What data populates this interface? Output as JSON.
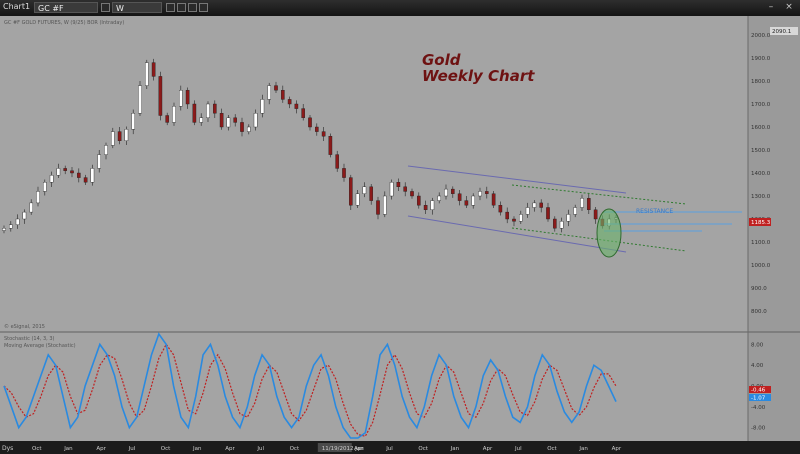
{
  "window": {
    "tab_label": "Chart1",
    "symbol": "GC #F",
    "interval": "W"
  },
  "chart_top": {
    "header_text": "GC #F GOLD FUTURES, W (9/25) BOR (Intraday)",
    "title_line1": "Gold",
    "title_line2": "Weekly Chart",
    "annotation": "RESISTANCE",
    "watermark": "© eSignal, 2015",
    "price_labels": [
      "2000.0",
      "1900.0",
      "1800.0",
      "1700.0",
      "1600.0",
      "1500.0",
      "1400.0",
      "1300.0",
      "1200.0",
      "1100.0",
      "1000.0",
      "900.0",
      "800.0"
    ],
    "top_price_badge": "2090.1",
    "last_price_badge": "1185.3",
    "colors": {
      "background": "#a4a4a4",
      "title": "#6e1212",
      "up_candle": "#ffffff",
      "down_candle": "#8b1a1a",
      "channel": "#6a6ab0",
      "resistance": "#5aa0e0",
      "trend_green": "#2f7a2f",
      "ellipse": "#6ab46a"
    }
  },
  "chart_bottom": {
    "header_line1": "Stochastic (14, 3, 3)",
    "header_line2": "Moving Average (Stochastic)",
    "levels": [
      "8.00",
      "4.00",
      "0.00",
      "-4.00",
      "-8.00"
    ],
    "badge_red": "-0.46",
    "badge_blue": "-1.07",
    "colors": {
      "fast": "#2a8ae0",
      "slow": "#c02020"
    }
  },
  "time_axis": {
    "interval_label": "Dys",
    "labels": [
      "Oct",
      "Jan",
      "Apr",
      "Jul",
      "Oct",
      "Jan",
      "Apr",
      "Jul",
      "Oct",
      "11/19/2012 Jan",
      "Apr",
      "Jul",
      "Oct",
      "Jan",
      "Apr",
      "Jul",
      "Oct",
      "Jan",
      "Apr"
    ]
  },
  "chart_data": {
    "type": "candlestick",
    "title": "Gold Weekly Chart",
    "ylim": [
      800,
      2050
    ],
    "close_series": [
      1160,
      1175,
      1200,
      1230,
      1270,
      1320,
      1360,
      1390,
      1420,
      1410,
      1400,
      1380,
      1360,
      1420,
      1480,
      1520,
      1580,
      1540,
      1590,
      1660,
      1780,
      1880,
      1820,
      1650,
      1620,
      1690,
      1760,
      1700,
      1620,
      1640,
      1700,
      1660,
      1600,
      1640,
      1620,
      1580,
      1600,
      1660,
      1720,
      1780,
      1760,
      1720,
      1700,
      1680,
      1640,
      1600,
      1580,
      1560,
      1480,
      1420,
      1380,
      1260,
      1310,
      1340,
      1280,
      1220,
      1300,
      1360,
      1340,
      1320,
      1300,
      1260,
      1240,
      1280,
      1300,
      1330,
      1310,
      1280,
      1260,
      1300,
      1320,
      1310,
      1260,
      1230,
      1200,
      1190,
      1220,
      1250,
      1270,
      1250,
      1200,
      1160,
      1190,
      1220,
      1250,
      1290,
      1240,
      1200,
      1170,
      1200,
      1205
    ],
    "oscillator_fast": [
      0,
      -4,
      -8,
      -6,
      -2,
      2,
      6,
      4,
      -2,
      -8,
      -6,
      0,
      4,
      8,
      6,
      2,
      -4,
      -8,
      -6,
      0,
      6,
      10,
      8,
      0,
      -6,
      -8,
      -2,
      6,
      8,
      4,
      -2,
      -6,
      -8,
      -4,
      2,
      6,
      4,
      -2,
      -6,
      -8,
      -6,
      0,
      4,
      6,
      2,
      -4,
      -8,
      -10,
      -10,
      -9,
      -2,
      6,
      8,
      4,
      -2,
      -6,
      -8,
      -4,
      2,
      6,
      4,
      -2,
      -6,
      -8,
      -4,
      2,
      5,
      3,
      -2,
      -6,
      -7,
      -4,
      2,
      6,
      4,
      -1,
      -5,
      -7,
      -5,
      0,
      4,
      3,
      0,
      -3
    ]
  }
}
